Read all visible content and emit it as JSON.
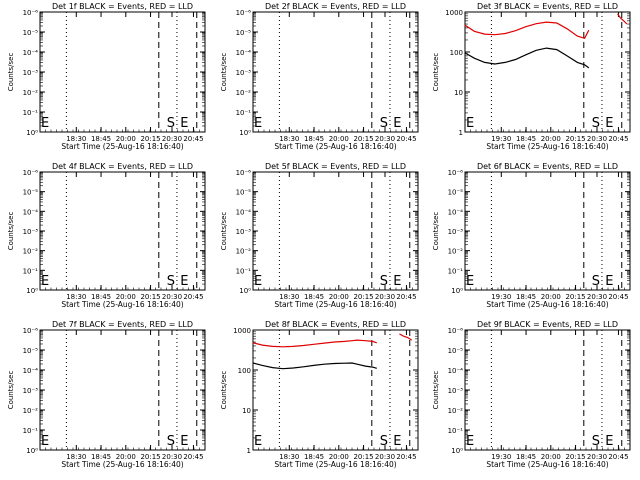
{
  "chart_data": [
    {
      "type": "line",
      "title": "Det 1f BLACK = Events, RED = LLD",
      "ylabel": "Counts/sec",
      "xlabel": "Start Time (25-Aug-16 18:16:40)",
      "yscale": "log",
      "ytick_labels": [
        "10⁰",
        "10⁻¹",
        "10⁻²",
        "10⁻³",
        "10⁻⁴",
        "10⁻⁵",
        "10⁻⁶"
      ],
      "xtick_labels": [
        "18:30",
        "18:45",
        "20:00",
        "20:15",
        "20:30",
        "20:45"
      ],
      "markers": [
        {
          "label": "E",
          "time": "18:16"
        },
        {
          "label": "S",
          "time": "20:17"
        },
        {
          "label": "E",
          "time": "20:30"
        }
      ],
      "series": []
    },
    {
      "type": "line",
      "title": "Det 2f BLACK = Events, RED = LLD",
      "ylabel": "Counts/sec",
      "xlabel": "Start Time (25-Aug-16 18:16:40)",
      "yscale": "log",
      "ytick_labels": [
        "10⁰",
        "10⁻¹",
        "10⁻²",
        "10⁻³",
        "10⁻⁴",
        "10⁻⁵",
        "10⁻⁶"
      ],
      "xtick_labels": [
        "18:30",
        "18:45",
        "20:00",
        "20:15",
        "20:30",
        "20:45"
      ],
      "markers": [
        {
          "label": "E",
          "time": "18:16"
        },
        {
          "label": "S",
          "time": "20:17"
        },
        {
          "label": "E",
          "time": "20:30"
        }
      ],
      "series": []
    },
    {
      "type": "line",
      "title": "Det 3f BLACK = Events, RED = LLD",
      "ylabel": "Counts/sec",
      "xlabel": "Start Time (25-Aug-16 18:16:40)",
      "yscale": "log",
      "ytick_labels": [
        "1",
        "10",
        "100",
        "1000"
      ],
      "xtick_labels": [
        "19:30",
        "18:45",
        "20:00",
        "20:15",
        "20:30",
        "20:45"
      ],
      "markers": [
        {
          "label": "E",
          "time": "18:16"
        },
        {
          "label": "S",
          "time": "20:17"
        },
        {
          "label": "E",
          "time": "20:30"
        }
      ],
      "series": [
        {
          "color": "#e00000",
          "x": [
            "18:16",
            "18:25",
            "18:35",
            "18:45",
            "18:55",
            "19:05",
            "19:15",
            "19:25",
            "19:35",
            "19:45",
            "19:55",
            "20:05",
            "20:12",
            "20:16"
          ],
          "y": [
            470,
            330,
            280,
            270,
            290,
            340,
            430,
            510,
            560,
            530,
            380,
            250,
            220,
            350
          ]
        },
        {
          "color": "#000000",
          "x": [
            "18:16",
            "18:25",
            "18:35",
            "18:45",
            "18:55",
            "19:05",
            "19:15",
            "19:25",
            "19:35",
            "19:45",
            "19:55",
            "20:05",
            "20:12",
            "20:16"
          ],
          "y": [
            95,
            70,
            55,
            50,
            55,
            65,
            85,
            110,
            125,
            115,
            80,
            55,
            48,
            40
          ]
        },
        {
          "color": "#e00000",
          "x": [
            "20:44",
            "20:47",
            "20:50",
            "20:53"
          ],
          "y": [
            900,
            700,
            600,
            500
          ]
        }
      ]
    },
    {
      "type": "line",
      "title": "Det 4f BLACK = Events, RED = LLD",
      "ylabel": "Counts/sec",
      "xlabel": "Start Time (25-Aug-16 18:16:40)",
      "yscale": "log",
      "ytick_labels": [
        "10⁰",
        "10⁻¹",
        "10⁻²",
        "10⁻³",
        "10⁻⁴",
        "10⁻⁵",
        "10⁻⁶"
      ],
      "xtick_labels": [
        "18:30",
        "18:45",
        "20:00",
        "20:15",
        "20:30",
        "20:45"
      ],
      "markers": [
        {
          "label": "E",
          "time": "18:16"
        },
        {
          "label": "S",
          "time": "20:17"
        },
        {
          "label": "E",
          "time": "20:30"
        }
      ],
      "series": []
    },
    {
      "type": "line",
      "title": "Det 5f BLACK = Events, RED = LLD",
      "ylabel": "Counts/sec",
      "xlabel": "Start Time (25-Aug-16 18:16:40)",
      "yscale": "log",
      "ytick_labels": [
        "10⁰",
        "10⁻¹",
        "10⁻²",
        "10⁻³",
        "10⁻⁴",
        "10⁻⁵",
        "10⁻⁶"
      ],
      "xtick_labels": [
        "18:30",
        "18:45",
        "20:00",
        "20:15",
        "20:30",
        "20:45"
      ],
      "markers": [
        {
          "label": "E",
          "time": "18:16"
        },
        {
          "label": "S",
          "time": "20:17"
        },
        {
          "label": "E",
          "time": "20:30"
        }
      ],
      "series": []
    },
    {
      "type": "line",
      "title": "Det 6f BLACK = Events, RED = LLD",
      "ylabel": "Counts/sec",
      "xlabel": "Start Time (25-Aug-16 18:16:40)",
      "yscale": "log",
      "ytick_labels": [
        "10⁰",
        "10⁻¹",
        "10⁻²",
        "10⁻³",
        "10⁻⁴",
        "10⁻⁵",
        "10⁻⁶"
      ],
      "xtick_labels": [
        "19:30",
        "18:45",
        "20:00",
        "20:15",
        "20:30",
        "20:45"
      ],
      "markers": [
        {
          "label": "E",
          "time": "18:16"
        },
        {
          "label": "S",
          "time": "20:17"
        },
        {
          "label": "E",
          "time": "20:30"
        }
      ],
      "series": []
    },
    {
      "type": "line",
      "title": "Det 7f BLACK = Events, RED = LLD",
      "ylabel": "Counts/sec",
      "xlabel": "Start Time (25-Aug-16 18:16:40)",
      "yscale": "log",
      "ytick_labels": [
        "10⁰",
        "10⁻¹",
        "10⁻²",
        "10⁻³",
        "10⁻⁴",
        "10⁻⁵",
        "10⁻⁶"
      ],
      "xtick_labels": [
        "18:30",
        "18:45",
        "20:00",
        "20:15",
        "20:30",
        "20:45"
      ],
      "markers": [
        {
          "label": "E",
          "time": "18:16"
        },
        {
          "label": "S",
          "time": "20:17"
        },
        {
          "label": "E",
          "time": "20:30"
        }
      ],
      "series": []
    },
    {
      "type": "line",
      "title": "Det 8f BLACK = Events, RED = LLD",
      "ylabel": "Counts/sec",
      "xlabel": "Start Time (25-Aug-16 18:16:40)",
      "yscale": "log",
      "ytick_labels": [
        "1",
        "10",
        "100",
        "1000"
      ],
      "xtick_labels": [
        "18:30",
        "18:45",
        "20:00",
        "20:15",
        "20:30",
        "20:45"
      ],
      "markers": [
        {
          "label": "E",
          "time": "18:16"
        },
        {
          "label": "S",
          "time": "20:17"
        },
        {
          "label": "E",
          "time": "20:30"
        }
      ],
      "series": [
        {
          "color": "#e00000",
          "x": [
            "18:16",
            "18:25",
            "18:35",
            "18:45",
            "18:55",
            "19:05",
            "19:15",
            "19:25",
            "19:35",
            "19:45",
            "19:52",
            "19:57",
            "20:05",
            "20:12",
            "20:16"
          ],
          "y": [
            480,
            420,
            390,
            380,
            390,
            410,
            440,
            470,
            500,
            520,
            540,
            560,
            540,
            520,
            480
          ]
        },
        {
          "color": "#000000",
          "x": [
            "18:16",
            "18:25",
            "18:35",
            "18:45",
            "18:55",
            "19:05",
            "19:15",
            "19:25",
            "19:35",
            "19:45",
            "19:52",
            "19:57",
            "20:05",
            "20:12",
            "20:16"
          ],
          "y": [
            150,
            130,
            115,
            108,
            112,
            120,
            130,
            140,
            145,
            148,
            150,
            140,
            125,
            118,
            110
          ]
        },
        {
          "color": "#e00000",
          "x": [
            "20:38",
            "20:42",
            "20:46",
            "20:50"
          ],
          "y": [
            800,
            700,
            650,
            560
          ]
        }
      ]
    },
    {
      "type": "line",
      "title": "Det 9f BLACK = Events, RED = LLD",
      "ylabel": "Counts/sec",
      "xlabel": "Start Time (25-Aug-16 18:16:40)",
      "yscale": "log",
      "ytick_labels": [
        "10⁰",
        "10⁻¹",
        "10⁻²",
        "10⁻³",
        "10⁻⁴",
        "10⁻⁵",
        "10⁻⁶"
      ],
      "xtick_labels": [
        "19:30",
        "18:45",
        "20:00",
        "20:15",
        "20:30",
        "20:45"
      ],
      "markers": [
        {
          "label": "E",
          "time": "18:16"
        },
        {
          "label": "S",
          "time": "20:17"
        },
        {
          "label": "E",
          "time": "20:30"
        }
      ],
      "series": []
    }
  ]
}
